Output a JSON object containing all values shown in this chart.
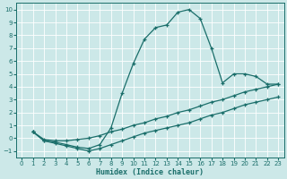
{
  "xlabel": "Humidex (Indice chaleur)",
  "bg_color": "#cce8e8",
  "line_color": "#1a6e6a",
  "grid_color": "#b8d8d8",
  "xlim": [
    -0.5,
    23.5
  ],
  "ylim": [
    -1.5,
    10.5
  ],
  "xticks": [
    0,
    1,
    2,
    3,
    4,
    5,
    6,
    7,
    8,
    9,
    10,
    11,
    12,
    13,
    14,
    15,
    16,
    17,
    18,
    19,
    20,
    21,
    22,
    23
  ],
  "yticks": [
    -1,
    0,
    1,
    2,
    3,
    4,
    5,
    6,
    7,
    8,
    9,
    10
  ],
  "line1_x": [
    1,
    2,
    3,
    4,
    5,
    6,
    7,
    8,
    9,
    10,
    11,
    12,
    13,
    14,
    15,
    16,
    17,
    18,
    19,
    20,
    21,
    22,
    23
  ],
  "line1_y": [
    0.5,
    -0.2,
    -0.3,
    -0.5,
    -0.7,
    -0.8,
    -0.5,
    0.8,
    3.5,
    5.8,
    7.7,
    8.6,
    8.8,
    9.8,
    10.0,
    9.3,
    7.0,
    4.3,
    5.0,
    5.0,
    4.8,
    4.2,
    4.2
  ],
  "line2_x": [
    1,
    2,
    3,
    4,
    5,
    6,
    7,
    8,
    9,
    10,
    11,
    12,
    13,
    14,
    15,
    16,
    17,
    18,
    19,
    20,
    21,
    22,
    23
  ],
  "line2_y": [
    0.5,
    -0.1,
    -0.2,
    -0.2,
    -0.1,
    0.0,
    0.2,
    0.5,
    0.7,
    1.0,
    1.2,
    1.5,
    1.7,
    2.0,
    2.2,
    2.5,
    2.8,
    3.0,
    3.3,
    3.6,
    3.8,
    4.0,
    4.2
  ],
  "line3_x": [
    1,
    2,
    3,
    4,
    5,
    6,
    7,
    8,
    9,
    10,
    11,
    12,
    13,
    14,
    15,
    16,
    17,
    18,
    19,
    20,
    21,
    22,
    23
  ],
  "line3_y": [
    0.5,
    -0.2,
    -0.4,
    -0.6,
    -0.8,
    -1.0,
    -0.8,
    -0.5,
    -0.2,
    0.1,
    0.4,
    0.6,
    0.8,
    1.0,
    1.2,
    1.5,
    1.8,
    2.0,
    2.3,
    2.6,
    2.8,
    3.0,
    3.2
  ]
}
